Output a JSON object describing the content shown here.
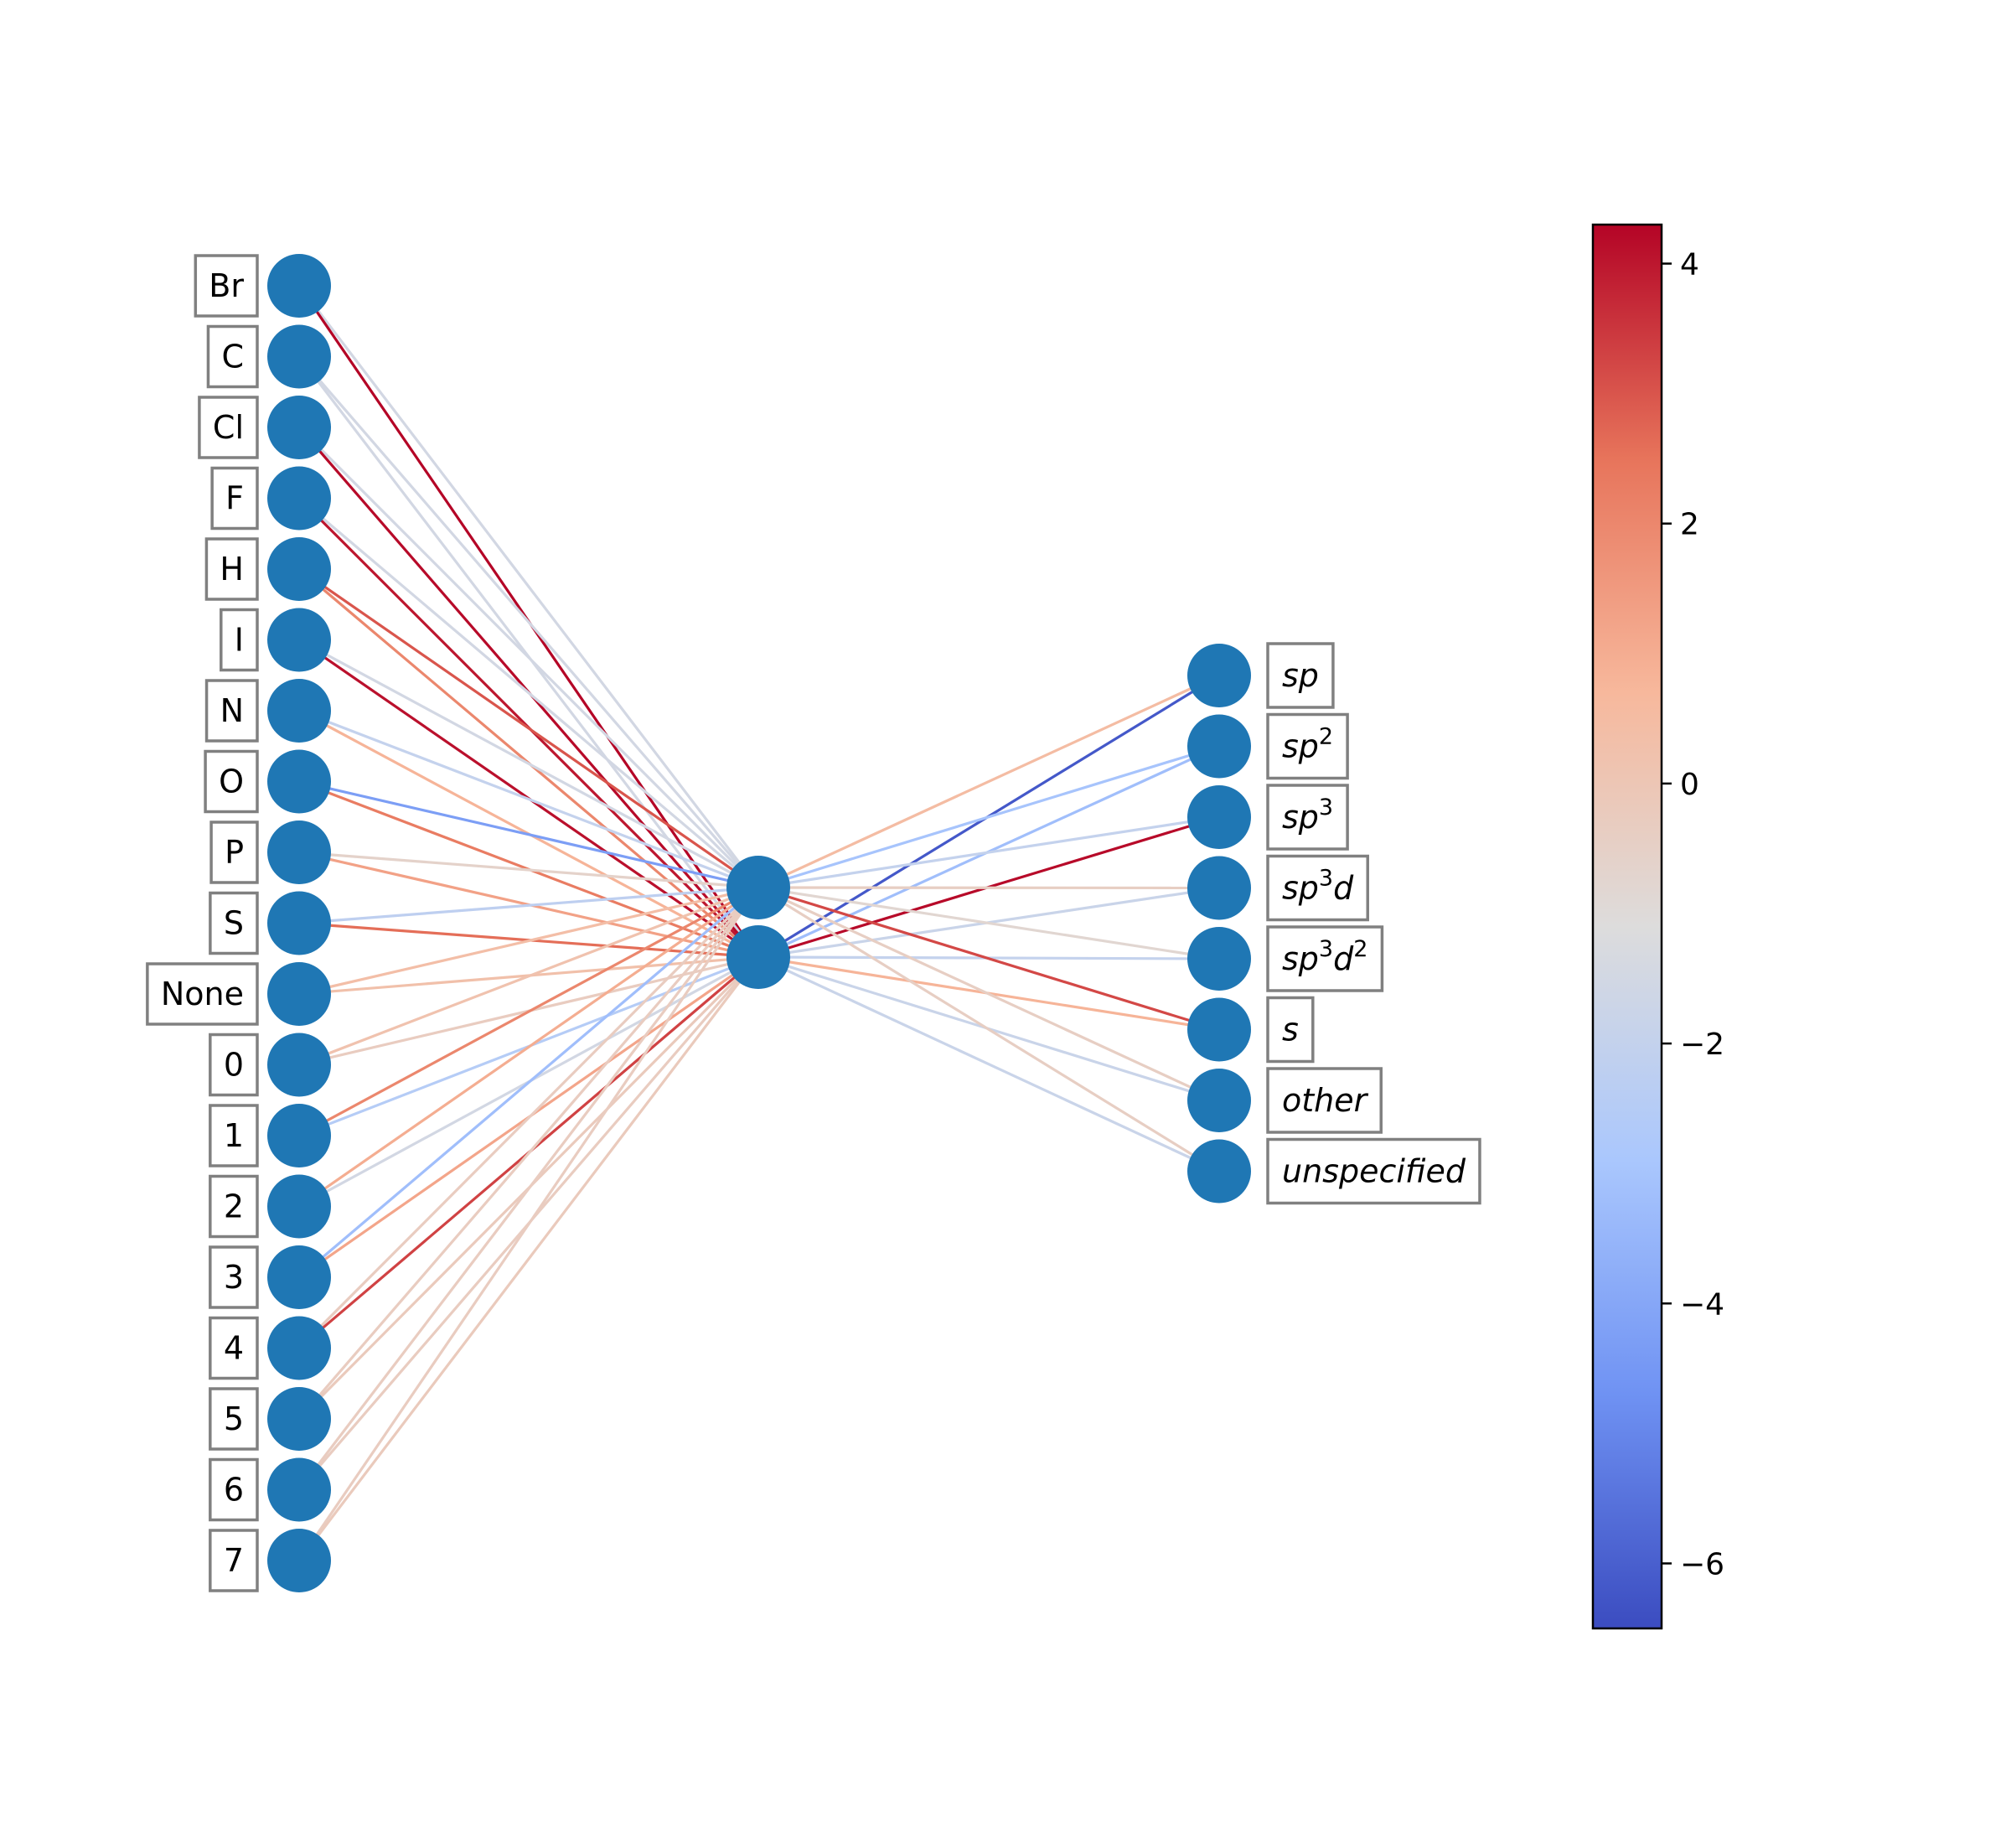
{
  "input_layer": {
    "labels": [
      "Br",
      "C",
      "Cl",
      "F",
      "H",
      "I",
      "N",
      "O",
      "P",
      "S",
      "None",
      "0",
      "1",
      "2",
      "3",
      "4",
      "5",
      "6",
      "7"
    ]
  },
  "output_layer": {
    "labels": [
      {
        "base": "sp",
        "sup": ""
      },
      {
        "base": "sp",
        "sup": "2"
      },
      {
        "base": "sp",
        "sup": "3"
      },
      {
        "base": "sp",
        "sup": "3",
        "tail": "d"
      },
      {
        "base": "sp",
        "sup": "3",
        "tail": "d",
        "sup2": "2"
      },
      {
        "base": "s",
        "sup": ""
      },
      {
        "base": "other",
        "sup": ""
      },
      {
        "base": "unspecified",
        "sup": ""
      }
    ]
  },
  "hidden_layer": {
    "size": 2
  },
  "colorbar": {
    "min": -6.5,
    "max": 4.3,
    "ticks": [
      "4",
      "2",
      "0",
      "−2",
      "−4",
      "−6"
    ],
    "colormap": "coolwarm",
    "stops": [
      "#3b4cc0",
      "#6f92f3",
      "#aac7fd",
      "#dddcdc",
      "#f7b89c",
      "#e7745b",
      "#b40426"
    ]
  },
  "node_color": "#1f77b4",
  "weights_in_to_hidden": [
    [
      -1.5,
      4.3
    ],
    [
      -1.5,
      -1.5
    ],
    [
      -1.5,
      4.2
    ],
    [
      -1.5,
      4.0
    ],
    [
      3.0,
      2.0
    ],
    [
      -1.5,
      4.1
    ],
    [
      -2.0,
      0.8
    ],
    [
      -4.3,
      2.3
    ],
    [
      -0.6,
      1.3
    ],
    [
      -2.2,
      2.6
    ],
    [
      0.4,
      0.3
    ],
    [
      0.2,
      -0.3
    ],
    [
      2.0,
      -2.5
    ],
    [
      1.0,
      -1.5
    ],
    [
      -3.2,
      1.2
    ],
    [
      -0.3,
      3.3
    ],
    [
      -0.3,
      -0.2
    ],
    [
      -0.3,
      -0.3
    ],
    [
      -0.3,
      -0.2
    ]
  ],
  "weights_hidden_to_out": [
    [
      0.5,
      -6.2
    ],
    [
      -3.0,
      -3.2
    ],
    [
      -2.0,
      4.2
    ],
    [
      -0.4,
      -1.8
    ],
    [
      -0.8,
      -2.0
    ],
    [
      3.2,
      0.8
    ],
    [
      -0.4,
      -1.8
    ],
    [
      -0.4,
      -1.8
    ]
  ]
}
